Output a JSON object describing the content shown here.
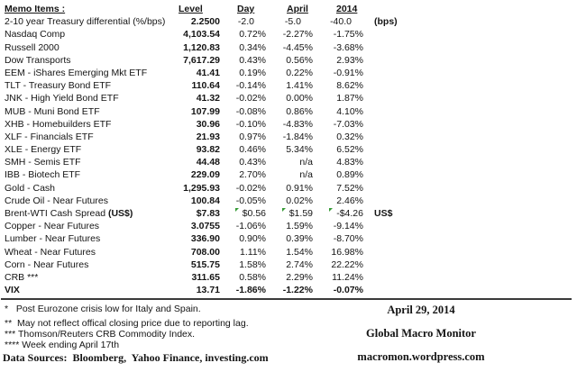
{
  "table": {
    "headers": {
      "item": "Memo Items :",
      "level": "Level",
      "day": "Day",
      "april": "April",
      "y2014": "2014"
    },
    "rows": [
      {
        "item": "2-10 year Treasury differential (%/bps)",
        "level": "2.2500",
        "day": "-2.0",
        "april": "-5.0",
        "y2014": "-40.0",
        "note": "(bps)",
        "no_pct": true
      },
      {
        "item": "Nasdaq Comp",
        "level": "4,103.54",
        "day": "0.72%",
        "april": "-2.27%",
        "y2014": "-1.75%"
      },
      {
        "item": "Russell 2000",
        "level": "1,120.83",
        "day": "0.34%",
        "april": "-4.45%",
        "y2014": "-3.68%"
      },
      {
        "item": "Dow Transports",
        "level": "7,617.29",
        "day": "0.43%",
        "april": "0.56%",
        "y2014": "2.93%"
      },
      {
        "item": "EEM - iShares Emerging Mkt ETF",
        "level": "41.41",
        "day": "0.19%",
        "april": "0.22%",
        "y2014": "-0.91%"
      },
      {
        "item": "TLT - Treasury Bond ETF",
        "level": "110.64",
        "day": "-0.14%",
        "april": "1.41%",
        "y2014": "8.62%"
      },
      {
        "item": "JNK - High Yield Bond ETF",
        "level": "41.32",
        "day": "-0.02%",
        "april": "0.00%",
        "y2014": "1.87%"
      },
      {
        "item": "MUB - Muni Bond ETF",
        "level": "107.99",
        "day": "-0.08%",
        "april": "0.86%",
        "y2014": "4.10%"
      },
      {
        "item": "XHB - Homebuilders ETF",
        "level": "30.96",
        "day": "-0.10%",
        "april": "-4.83%",
        "y2014": "-7.03%"
      },
      {
        "item": "XLF - Financials ETF",
        "level": "21.93",
        "day": "0.97%",
        "april": "-1.84%",
        "y2014": "0.32%"
      },
      {
        "item": "XLE - Energy ETF",
        "level": "93.82",
        "day": "0.46%",
        "april": "5.34%",
        "y2014": "6.52%"
      },
      {
        "item": "SMH - Semis ETF",
        "level": "44.48",
        "day": "0.43%",
        "april": "n/a",
        "y2014": "4.83%"
      },
      {
        "item": "IBB - Biotech ETF",
        "level": "229.09",
        "day": "2.70%",
        "april": "n/a",
        "y2014": "0.89%"
      },
      {
        "item": "Gold - Cash",
        "level": "1,295.93",
        "day": "-0.02%",
        "april": "0.91%",
        "y2014": "7.52%"
      },
      {
        "item": "Crude Oil - Near Futures",
        "level": "100.84",
        "day": "-0.05%",
        "april": "0.02%",
        "y2014": "2.46%"
      },
      {
        "item": "Brent-WTI Cash Spread ",
        "item_bold": "(US$)",
        "level": "$7.83",
        "day": "$0.56",
        "april": "$1.59",
        "y2014": "-$4.26",
        "note": "US$",
        "flagged": true
      },
      {
        "item": "Copper - Near Futures",
        "level": "3.0755",
        "day": "-1.06%",
        "april": "1.59%",
        "y2014": "-9.14%"
      },
      {
        "item": "Lumber - Near Futures",
        "level": "336.90",
        "day": "0.90%",
        "april": "0.39%",
        "y2014": "-8.70%"
      },
      {
        "item": "Wheat - Near Futures",
        "level": "708.00",
        "day": "1.11%",
        "april": "1.54%",
        "y2014": "16.98%"
      },
      {
        "item": "Corn - Near Futures",
        "level": "515.75",
        "day": "1.58%",
        "april": "2.74%",
        "y2014": "22.22%"
      },
      {
        "item": "CRB ***",
        "level": "311.65",
        "day": "0.58%",
        "april": "2.29%",
        "y2014": "11.24%"
      },
      {
        "item": "VIX",
        "level": "13.71",
        "day": "-1.86%",
        "april": "-1.22%",
        "y2014": "-0.07%",
        "bold": true
      }
    ]
  },
  "footnotes": [
    "*   Post Eurozone crisis low for Italy and Spain.",
    "**  May not reflect offical closing price due to reporting lag.",
    "*** Thomson/Reuters CRB Commodity Index.",
    "**** Week ending April 17th"
  ],
  "data_sources": "Data Sources:  Bloomberg,  Yahoo Finance, investing.com",
  "publication": {
    "date": "April 29, 2014",
    "title": "Global Macro Monitor",
    "url": "macromon.wordpress.com"
  },
  "colors": {
    "marker_green": "#359b35"
  }
}
